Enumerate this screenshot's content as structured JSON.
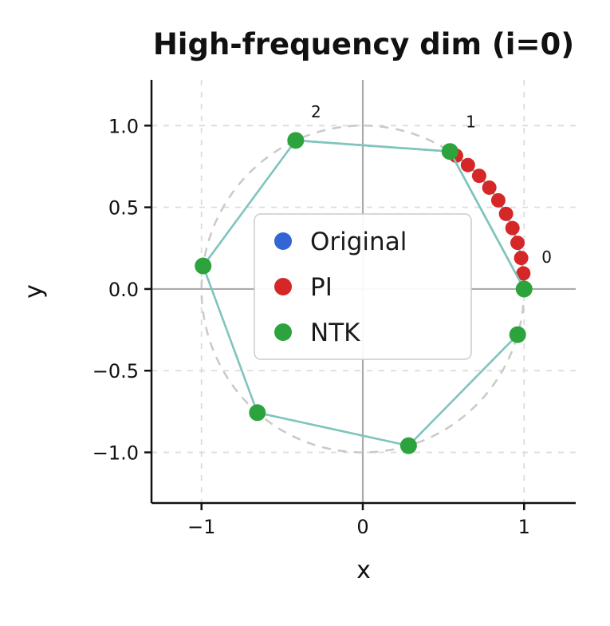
{
  "chart_data": {
    "type": "scatter",
    "title": "High-frequency dim (i=0)",
    "xlabel": "x",
    "ylabel": "y",
    "xlim": [
      -1.31,
      1.32
    ],
    "ylim": [
      -1.31,
      1.28
    ],
    "xticks": {
      "values": [
        -1,
        0,
        1
      ],
      "labels": [
        "−1",
        "0",
        "1"
      ]
    },
    "yticks": {
      "values": [
        -1,
        -0.5,
        0,
        0.5,
        1
      ],
      "labels": [
        "−1.0",
        "−0.5",
        "0.0",
        "0.5",
        "1.0"
      ]
    },
    "grid": {
      "show": true,
      "style": "dashed",
      "color": "#dcdcdc",
      "zero_line_color": "#ababab"
    },
    "unit_circle": {
      "radius": 1,
      "style": "dashed",
      "color": "#c9c9c9"
    },
    "connector_color": "#7fc4bd",
    "series": [
      {
        "name": "Original",
        "color": "#3465d4",
        "marker_radius": 9,
        "angles_rad": [
          0,
          1,
          2
        ],
        "points": [
          [
            1,
            0
          ],
          [
            0.5403,
            0.8415
          ],
          [
            -0.4161,
            0.9093
          ]
        ]
      },
      {
        "name": "PI",
        "color": "#d62728",
        "marker_radius": 9,
        "angles_rad": [
          0,
          0.0955,
          0.191,
          0.2865,
          0.382,
          0.4775,
          0.573,
          0.6685,
          0.764,
          0.8595,
          0.955
        ],
        "points": [
          [
            1,
            0
          ],
          [
            0.9954,
            0.0954
          ],
          [
            0.9818,
            0.1898
          ],
          [
            0.9592,
            0.2826
          ],
          [
            0.9279,
            0.3728
          ],
          [
            0.8881,
            0.4597
          ],
          [
            0.84,
            0.5425
          ],
          [
            0.7843,
            0.6204
          ],
          [
            0.7214,
            0.6926
          ],
          [
            0.6518,
            0.7584
          ],
          [
            0.5782,
            0.8159
          ]
        ]
      },
      {
        "name": "NTK",
        "color": "#2ca33c",
        "marker_radius": 10.5,
        "angles_rad": [
          0,
          1,
          2,
          3,
          4,
          5,
          6
        ],
        "points": [
          [
            1,
            0
          ],
          [
            0.5403,
            0.8415
          ],
          [
            -0.4161,
            0.9093
          ],
          [
            -0.99,
            0.1411
          ],
          [
            -0.6536,
            -0.7568
          ],
          [
            0.2837,
            -0.9589
          ],
          [
            0.9602,
            -0.2794
          ]
        ]
      }
    ],
    "annotations": [
      {
        "text": "0",
        "x": 1.14,
        "y": 0.16
      },
      {
        "text": "1",
        "x": 0.67,
        "y": 0.99
      },
      {
        "text": "2",
        "x": -0.29,
        "y": 1.05
      }
    ],
    "legend": {
      "position": "center left",
      "entries": [
        "Original",
        "PI",
        "NTK"
      ]
    }
  }
}
